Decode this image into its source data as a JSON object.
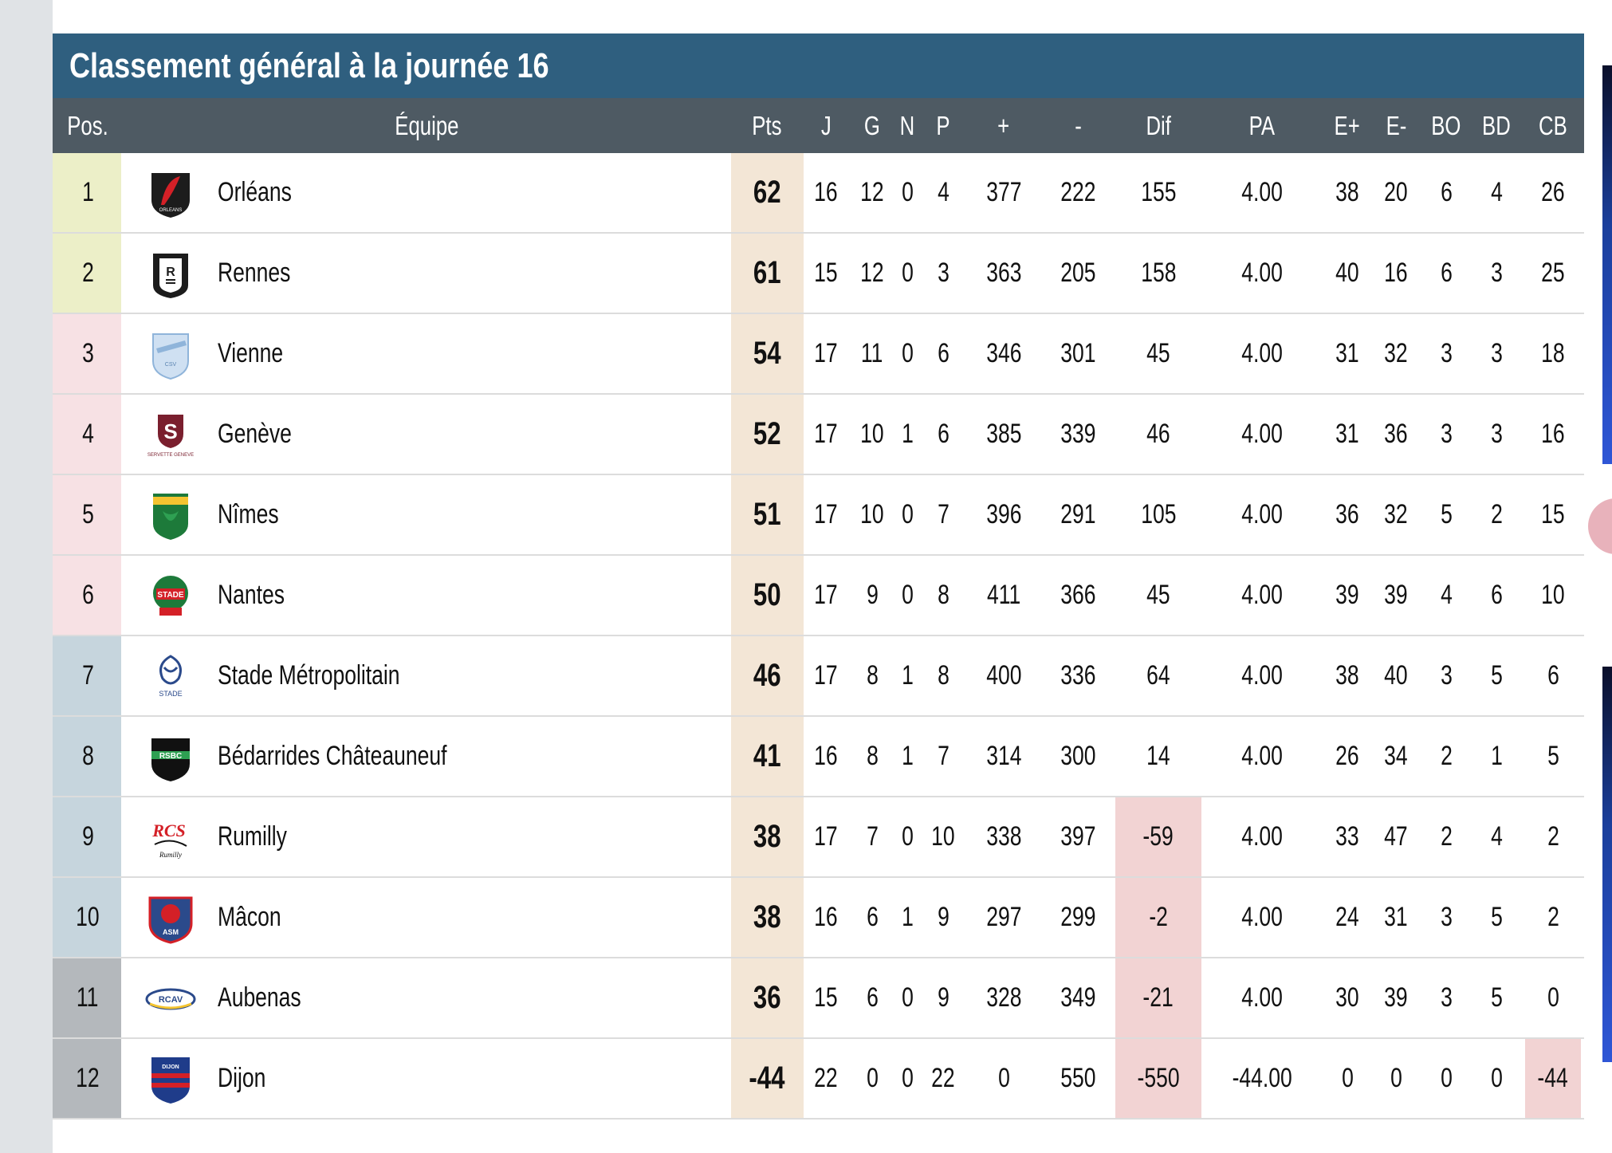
{
  "title": "Classement général à la journée 16",
  "colors": {
    "title_bar": "#2f5f7f",
    "header_bar": "#4e5a63",
    "zone_green": "#ecefc8",
    "zone_pink": "#f7e1e4",
    "zone_blue": "#c6d5dd",
    "zone_grey": "#b4b8bc",
    "points_highlight": "#f3e6d6",
    "negative_highlight": "#f2d3d3"
  },
  "columns": [
    "Pos.",
    "Équipe",
    "Pts",
    "J",
    "G",
    "N",
    "P",
    "+",
    "-",
    "Dif",
    "PA",
    "E+",
    "E-",
    "BO",
    "BD",
    "CB"
  ],
  "rows": [
    {
      "pos": "1",
      "team": "Orléans",
      "pts": "62",
      "j": "16",
      "g": "12",
      "n": "0",
      "p": "4",
      "plus": "377",
      "minus": "222",
      "dif": "155",
      "pa": "4.00",
      "eplus": "38",
      "eminus": "20",
      "bo": "6",
      "bd": "4",
      "cb": "26",
      "zone": "green",
      "logo": "orleans-logo-icon"
    },
    {
      "pos": "2",
      "team": "Rennes",
      "pts": "61",
      "j": "15",
      "g": "12",
      "n": "0",
      "p": "3",
      "plus": "363",
      "minus": "205",
      "dif": "158",
      "pa": "4.00",
      "eplus": "40",
      "eminus": "16",
      "bo": "6",
      "bd": "3",
      "cb": "25",
      "zone": "green",
      "logo": "rennes-logo-icon"
    },
    {
      "pos": "3",
      "team": "Vienne",
      "pts": "54",
      "j": "17",
      "g": "11",
      "n": "0",
      "p": "6",
      "plus": "346",
      "minus": "301",
      "dif": "45",
      "pa": "4.00",
      "eplus": "31",
      "eminus": "32",
      "bo": "3",
      "bd": "3",
      "cb": "18",
      "zone": "pink",
      "logo": "vienne-logo-icon"
    },
    {
      "pos": "4",
      "team": "Genève",
      "pts": "52",
      "j": "17",
      "g": "10",
      "n": "1",
      "p": "6",
      "plus": "385",
      "minus": "339",
      "dif": "46",
      "pa": "4.00",
      "eplus": "31",
      "eminus": "36",
      "bo": "3",
      "bd": "3",
      "cb": "16",
      "zone": "pink",
      "logo": "geneve-logo-icon"
    },
    {
      "pos": "5",
      "team": "Nîmes",
      "pts": "51",
      "j": "17",
      "g": "10",
      "n": "0",
      "p": "7",
      "plus": "396",
      "minus": "291",
      "dif": "105",
      "pa": "4.00",
      "eplus": "36",
      "eminus": "32",
      "bo": "5",
      "bd": "2",
      "cb": "15",
      "zone": "pink",
      "logo": "nimes-logo-icon"
    },
    {
      "pos": "6",
      "team": "Nantes",
      "pts": "50",
      "j": "17",
      "g": "9",
      "n": "0",
      "p": "8",
      "plus": "411",
      "minus": "366",
      "dif": "45",
      "pa": "4.00",
      "eplus": "39",
      "eminus": "39",
      "bo": "4",
      "bd": "6",
      "cb": "10",
      "zone": "pink",
      "logo": "nantes-logo-icon"
    },
    {
      "pos": "7",
      "team": "Stade Métropolitain",
      "pts": "46",
      "j": "17",
      "g": "8",
      "n": "1",
      "p": "8",
      "plus": "400",
      "minus": "336",
      "dif": "64",
      "pa": "4.00",
      "eplus": "38",
      "eminus": "40",
      "bo": "3",
      "bd": "5",
      "cb": "6",
      "zone": "blue",
      "logo": "stade-metropolitain-logo-icon"
    },
    {
      "pos": "8",
      "team": "Bédarrides Châteauneuf",
      "pts": "41",
      "j": "16",
      "g": "8",
      "n": "1",
      "p": "7",
      "plus": "314",
      "minus": "300",
      "dif": "14",
      "pa": "4.00",
      "eplus": "26",
      "eminus": "34",
      "bo": "2",
      "bd": "1",
      "cb": "5",
      "zone": "blue",
      "logo": "bedarrides-logo-icon"
    },
    {
      "pos": "9",
      "team": "Rumilly",
      "pts": "38",
      "j": "17",
      "g": "7",
      "n": "0",
      "p": "10",
      "plus": "338",
      "minus": "397",
      "dif": "-59",
      "pa": "4.00",
      "eplus": "33",
      "eminus": "47",
      "bo": "2",
      "bd": "4",
      "cb": "2",
      "zone": "blue",
      "logo": "rumilly-logo-icon"
    },
    {
      "pos": "10",
      "team": "Mâcon",
      "pts": "38",
      "j": "16",
      "g": "6",
      "n": "1",
      "p": "9",
      "plus": "297",
      "minus": "299",
      "dif": "-2",
      "pa": "4.00",
      "eplus": "24",
      "eminus": "31",
      "bo": "3",
      "bd": "5",
      "cb": "2",
      "zone": "blue",
      "logo": "macon-logo-icon"
    },
    {
      "pos": "11",
      "team": "Aubenas",
      "pts": "36",
      "j": "15",
      "g": "6",
      "n": "0",
      "p": "9",
      "plus": "328",
      "minus": "349",
      "dif": "-21",
      "pa": "4.00",
      "eplus": "30",
      "eminus": "39",
      "bo": "3",
      "bd": "5",
      "cb": "0",
      "zone": "grey",
      "logo": "aubenas-logo-icon"
    },
    {
      "pos": "12",
      "team": "Dijon",
      "pts": "-44",
      "j": "22",
      "g": "0",
      "n": "0",
      "p": "22",
      "plus": "0",
      "minus": "550",
      "dif": "-550",
      "pa": "-44.00",
      "eplus": "0",
      "eminus": "0",
      "bo": "0",
      "bd": "0",
      "cb": "-44",
      "zone": "grey",
      "logo": "dijon-logo-icon"
    }
  ]
}
